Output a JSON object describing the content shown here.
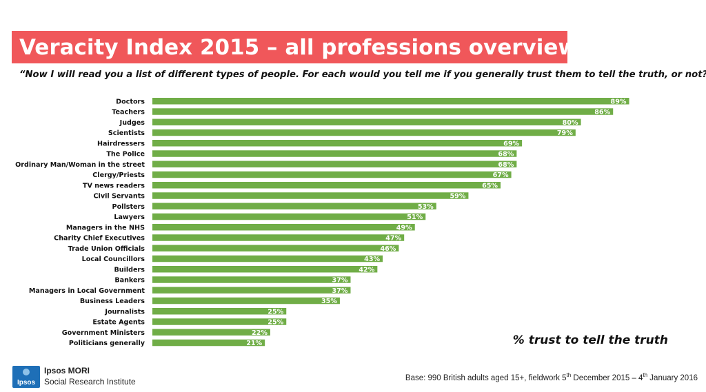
{
  "title": "Veracity Index 2015 – all professions overview",
  "question": "“Now I will read you a list of different types of people. For each would you tell me if you generally trust them to tell the truth, or not?”",
  "measure_label": "% trust to tell the truth",
  "base": {
    "prefix": "Base: 990 British adults aged 15+, fieldwork 5",
    "sup1": "th",
    "middle": " December 2015 – 4",
    "sup2": "th",
    "suffix": " January 2016"
  },
  "logo": {
    "mark": "Ipsos",
    "name": "Ipsos MORI",
    "subtitle": "Social Research Institute"
  },
  "colors": {
    "title_bg": "#f0575a",
    "bar": "#70ad47",
    "logo": "#1e6fb7"
  },
  "chart_data": {
    "type": "bar",
    "orientation": "horizontal",
    "categories": [
      "Doctors",
      "Teachers",
      "Judges",
      "Scientists",
      "Hairdressers",
      "The Police",
      "Ordinary Man/Woman in the street",
      "Clergy/Priests",
      "TV news readers",
      "Civil Servants",
      "Pollsters",
      "Lawyers",
      "Managers in the NHS",
      "Charity Chief Executives",
      "Trade Union Officials",
      "Local Councillors",
      "Builders",
      "Bankers",
      "Managers in Local Government",
      "Business Leaders",
      "Journalists",
      "Estate Agents",
      "Government Ministers",
      "Politicians generally"
    ],
    "values": [
      89,
      86,
      80,
      79,
      69,
      68,
      68,
      67,
      65,
      59,
      53,
      51,
      49,
      47,
      46,
      43,
      42,
      37,
      37,
      35,
      25,
      25,
      22,
      21
    ],
    "value_labels": [
      "89%",
      "86%",
      "80%",
      "79%",
      "69%",
      "68%",
      "68%",
      "67%",
      "65%",
      "59%",
      "53%",
      "51%",
      "49%",
      "47%",
      "46%",
      "43%",
      "42%",
      "37%",
      "37%",
      "35%",
      "25%",
      "25%",
      "22%",
      "21%"
    ],
    "xlim": [
      0,
      100
    ],
    "grid": false,
    "legend": "none"
  }
}
